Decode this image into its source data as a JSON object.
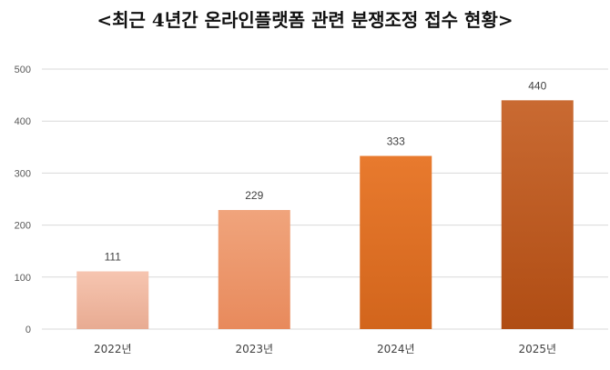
{
  "chart_data": {
    "type": "bar",
    "title": "<최근 4년간 온라인플랫폼 관련 분쟁조정 접수 현황>",
    "categories": [
      "2022년",
      "2023년",
      "2024년",
      "2025년"
    ],
    "values": [
      111,
      229,
      333,
      440
    ],
    "data_labels": [
      "111",
      "229",
      "333",
      "440"
    ],
    "yticks": [
      "0",
      "100",
      "200",
      "300",
      "400",
      "500"
    ],
    "ylim": [
      0,
      500
    ],
    "grid": true,
    "legend": "none",
    "colors": {
      "bars_top": [
        "#f6c5b0",
        "#f0a47c",
        "#e87a2e",
        "#c96a32"
      ],
      "bars_bottom": [
        "#e8ab92",
        "#e88a5c",
        "#d2651c",
        "#b04d14"
      ]
    }
  }
}
